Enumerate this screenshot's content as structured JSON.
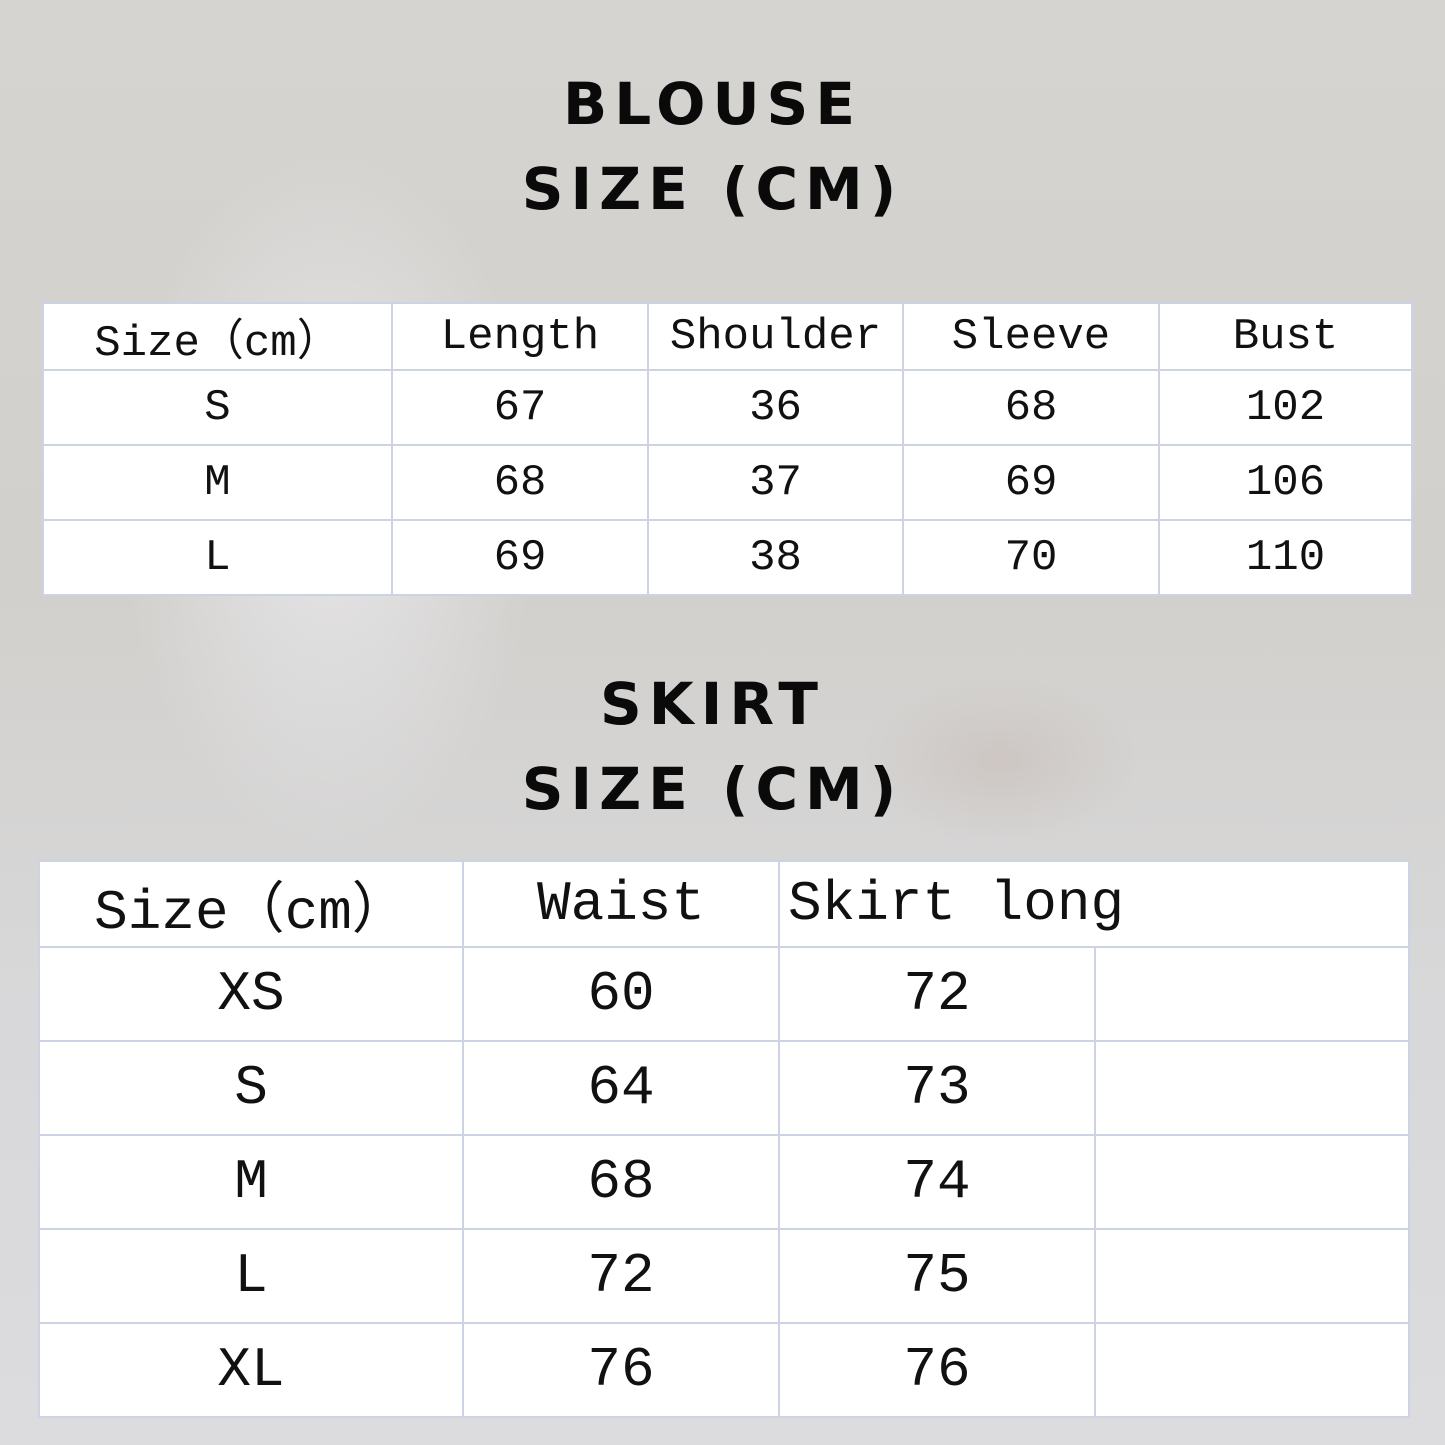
{
  "blouse": {
    "title": "BLOUSE",
    "subtitle": "SIZE (CM)",
    "headers": [
      "Size（cm）",
      "Length",
      "Shoulder",
      "Sleeve",
      "Bust"
    ],
    "rows": [
      [
        "S",
        "67",
        "36",
        "68",
        "102"
      ],
      [
        "M",
        "68",
        "37",
        "69",
        "106"
      ],
      [
        "L",
        "69",
        "38",
        "70",
        "110"
      ]
    ]
  },
  "skirt": {
    "title": "SKIRT",
    "subtitle": "SIZE (CM)",
    "headers": [
      "Size（cm）",
      "Waist",
      "Skirt long"
    ],
    "rows": [
      [
        "XS",
        "60",
        "72"
      ],
      [
        "S",
        "64",
        "73"
      ],
      [
        "M",
        "68",
        "74"
      ],
      [
        "L",
        "72",
        "75"
      ],
      [
        "XL",
        "76",
        "76"
      ]
    ]
  }
}
